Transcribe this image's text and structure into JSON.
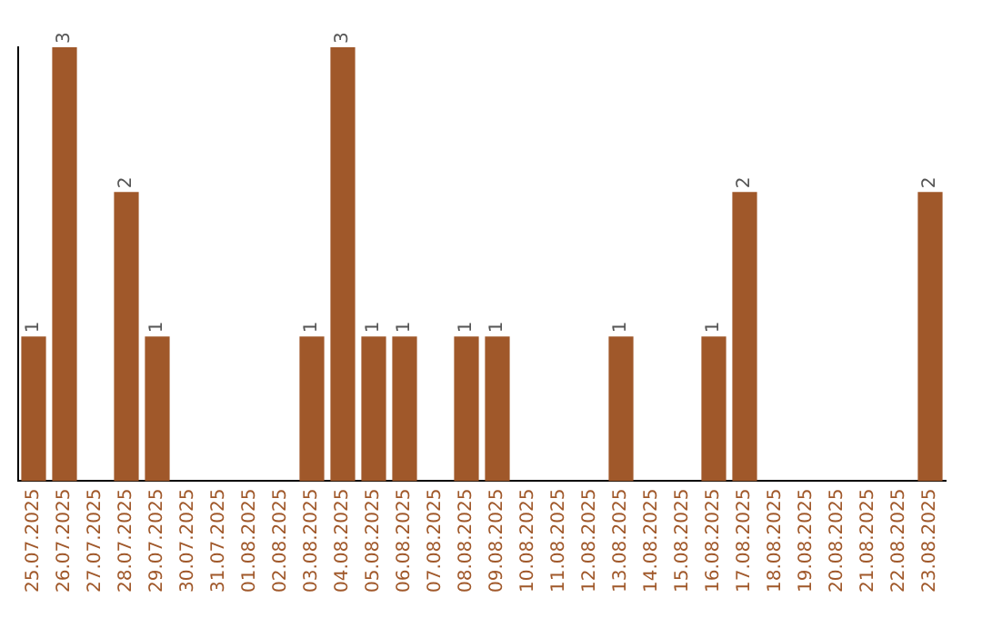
{
  "chart_data": {
    "type": "bar",
    "categories": [
      "25.07.2025",
      "26.07.2025",
      "27.07.2025",
      "28.07.2025",
      "29.07.2025",
      "30.07.2025",
      "31.07.2025",
      "01.08.2025",
      "02.08.2025",
      "03.08.2025",
      "04.08.2025",
      "05.08.2025",
      "06.08.2025",
      "07.08.2025",
      "08.08.2025",
      "09.08.2025",
      "10.08.2025",
      "11.08.2025",
      "12.08.2025",
      "13.08.2025",
      "14.08.2025",
      "15.08.2025",
      "16.08.2025",
      "17.08.2025",
      "18.08.2025",
      "19.08.2025",
      "20.08.2025",
      "21.08.2025",
      "22.08.2025",
      "23.08.2025"
    ],
    "values": [
      1,
      3,
      0,
      2,
      1,
      0,
      0,
      0,
      0,
      1,
      3,
      1,
      1,
      0,
      1,
      1,
      0,
      0,
      0,
      1,
      0,
      0,
      1,
      2,
      0,
      0,
      0,
      0,
      0,
      2
    ],
    "value_labels": [
      "1",
      "3",
      null,
      "2",
      "1",
      null,
      null,
      null,
      null,
      "1",
      "3",
      "1",
      "1",
      null,
      "1",
      "1",
      null,
      null,
      null,
      "1",
      null,
      null,
      "1",
      "2",
      null,
      null,
      null,
      null,
      null,
      "2"
    ],
    "color": "#a0582a",
    "grid": false,
    "legend": false,
    "tick_labels": "x"
  }
}
